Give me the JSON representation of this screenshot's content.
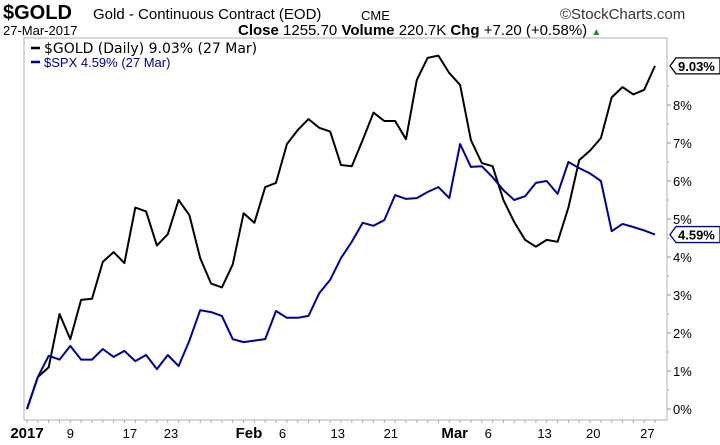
{
  "header": {
    "symbol": "$GOLD",
    "name": "Gold - Continuous Contract (EOD)",
    "exchange": "CME",
    "copyright": "©StockCharts.com",
    "date": "27-Mar-2017",
    "close_label": "Close",
    "close_value": "1255.70",
    "volume_label": "Volume",
    "volume_value": "220.7K",
    "chg_label": "Chg",
    "chg_value": "+7.20 (+0.58%)",
    "up_color": "#1a8a2a"
  },
  "chart_data": {
    "type": "line",
    "title": "$GOLD Gold - Continuous Contract (EOD) CME",
    "xlabel": "",
    "ylabel": "",
    "ylim": [
      -0.3,
      9.8
    ],
    "yticks": [
      "0%",
      "1%",
      "2%",
      "3%",
      "4%",
      "5%",
      "6%",
      "7%",
      "8%"
    ],
    "ytick_values": [
      0,
      1,
      2,
      3,
      4,
      5,
      6,
      7,
      8
    ],
    "xticks": [
      {
        "label": "2017",
        "index": 0,
        "bold": true
      },
      {
        "label": "9",
        "index": 4,
        "bold": false
      },
      {
        "label": "17",
        "index": 9.5,
        "bold": false
      },
      {
        "label": "23",
        "index": 13.3,
        "bold": false
      },
      {
        "label": "Feb",
        "index": 20.5,
        "bold": true
      },
      {
        "label": "6",
        "index": 23.6,
        "bold": false
      },
      {
        "label": "13",
        "index": 28.7,
        "bold": false
      },
      {
        "label": "21",
        "index": 33.6,
        "bold": false
      },
      {
        "label": "Mar",
        "index": 39.5,
        "bold": true
      },
      {
        "label": "6",
        "index": 42.6,
        "bold": false
      },
      {
        "label": "13",
        "index": 47.8,
        "bold": false
      },
      {
        "label": "20",
        "index": 52.3,
        "bold": false
      },
      {
        "label": "27",
        "index": 57.3,
        "bold": false
      }
    ],
    "legend_position": "top-left",
    "series": [
      {
        "name": "$GOLD (Daily) 9.03% (27 Mar)",
        "color": "#000000",
        "end_label": "9.03%",
        "end_value": 9.03,
        "values": [
          0,
          0.84,
          1.1,
          2.5,
          1.84,
          2.87,
          2.9,
          3.87,
          4.13,
          3.84,
          5.3,
          5.2,
          4.3,
          4.6,
          5.5,
          5.1,
          3.97,
          3.3,
          3.2,
          3.8,
          5.15,
          4.9,
          5.84,
          5.95,
          6.97,
          7.34,
          7.63,
          7.4,
          7.3,
          6.42,
          6.39,
          7.08,
          7.8,
          7.58,
          7.58,
          7.1,
          8.66,
          9.24,
          9.3,
          8.84,
          8.53,
          7.08,
          6.47,
          6.39,
          5.5,
          4.92,
          4.45,
          4.27,
          4.45,
          4.4,
          5.3,
          6.55,
          6.8,
          7.13,
          8.2,
          8.47,
          8.28,
          8.4,
          9.03
        ]
      },
      {
        "name": "$SPX 4.59% (27 Mar)",
        "color": "#00008b",
        "end_label": "4.59%",
        "end_value": 4.59,
        "values": [
          0,
          0.84,
          1.4,
          1.3,
          1.66,
          1.3,
          1.3,
          1.58,
          1.37,
          1.53,
          1.26,
          1.42,
          1.05,
          1.42,
          1.13,
          1.8,
          2.6,
          2.55,
          2.45,
          1.84,
          1.76,
          1.8,
          1.84,
          2.58,
          2.4,
          2.4,
          2.45,
          3.05,
          3.4,
          3.97,
          4.4,
          4.9,
          4.82,
          4.97,
          5.63,
          5.53,
          5.55,
          5.71,
          5.84,
          5.55,
          6.97,
          6.37,
          6.39,
          6.1,
          5.76,
          5.5,
          5.6,
          5.95,
          6.0,
          5.66,
          6.5,
          6.34,
          6.2,
          6.0,
          4.68,
          4.87,
          4.79,
          4.7,
          4.59
        ]
      }
    ]
  }
}
